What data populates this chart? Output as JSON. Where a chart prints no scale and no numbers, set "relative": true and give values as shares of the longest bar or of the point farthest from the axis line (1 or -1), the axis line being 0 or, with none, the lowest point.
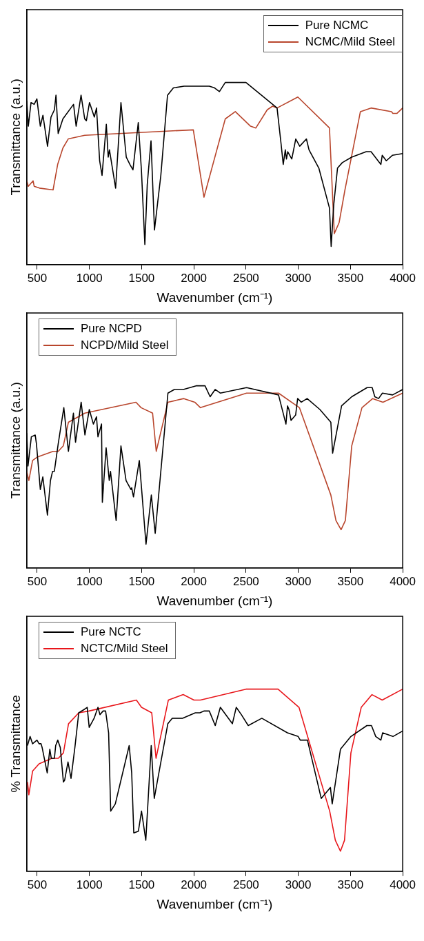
{
  "chart_data": [
    {
      "type": "line",
      "relative": true,
      "xlabel": "Wavenumber (cm⁻¹)",
      "ylabel": "Transmittance (a.u.)",
      "xlim": [
        400,
        4000
      ],
      "xticks": [
        500,
        1000,
        1500,
        2000,
        2500,
        3000,
        3500,
        4000
      ],
      "grid": false,
      "legend": "top right",
      "marker": "none",
      "line_style": "solid",
      "series": [
        {
          "name": "Pure NCMC",
          "color": "#000000",
          "x": [
            400,
            415,
            441,
            471,
            497,
            530,
            555,
            599,
            632,
            665,
            680,
            701,
            746,
            848,
            873,
            920,
            955,
            971,
            1001,
            1047,
            1068,
            1098,
            1121,
            1162,
            1180,
            1192,
            1251,
            1302,
            1353,
            1388,
            1417,
            1468,
            1498,
            1531,
            1554,
            1590,
            1623,
            1684,
            1748,
            1804,
            1906,
            2148,
            2199,
            2245,
            2301,
            2499,
            2797,
            2836,
            2856,
            2876,
            2887,
            2899,
            2938,
            2976,
            3014,
            3078,
            3103,
            3197,
            3299,
            3315,
            3340,
            3376,
            3422,
            3511,
            3651,
            3697,
            3791,
            3804,
            3843,
            3901,
            4000
          ],
          "values": [
            0.9,
            0.76,
            0.89,
            0.88,
            0.91,
            0.76,
            0.82,
            0.65,
            0.81,
            0.85,
            0.93,
            0.72,
            0.8,
            0.88,
            0.76,
            0.93,
            0.8,
            0.79,
            0.89,
            0.81,
            0.86,
            0.57,
            0.49,
            0.77,
            0.59,
            0.63,
            0.42,
            0.89,
            0.59,
            0.55,
            0.52,
            0.78,
            0.52,
            0.11,
            0.44,
            0.68,
            0.19,
            0.49,
            0.93,
            0.97,
            0.98,
            0.98,
            0.97,
            0.95,
            1.0,
            1.0,
            0.86,
            0.66,
            0.55,
            0.63,
            0.58,
            0.62,
            0.58,
            0.69,
            0.65,
            0.69,
            0.63,
            0.53,
            0.31,
            0.1,
            0.33,
            0.53,
            0.56,
            0.59,
            0.62,
            0.62,
            0.55,
            0.6,
            0.57,
            0.6,
            0.61
          ]
        },
        {
          "name": "NCMC/Mild Steel",
          "color": "#b8452c",
          "x": [
            400,
            415,
            461,
            471,
            522,
            652,
            696,
            746,
            797,
            955,
            1995,
            2097,
            2301,
            2397,
            2543,
            2594,
            2703,
            2754,
            2797,
            2996,
            3299,
            3345,
            3391,
            3447,
            3595,
            3697,
            3893,
            3906,
            3944,
            4000
          ],
          "values": [
            0.46,
            0.43,
            0.46,
            0.43,
            0.42,
            0.41,
            0.55,
            0.64,
            0.69,
            0.71,
            0.74,
            0.37,
            0.8,
            0.84,
            0.76,
            0.75,
            0.85,
            0.87,
            0.86,
            0.92,
            0.75,
            0.17,
            0.23,
            0.41,
            0.84,
            0.86,
            0.84,
            0.83,
            0.83,
            0.86
          ]
        }
      ]
    },
    {
      "type": "line",
      "relative": true,
      "xlabel": "Wavenumber (cm⁻¹)",
      "ylabel": "Transmittance (a.u.)",
      "xlim": [
        400,
        4000
      ],
      "xticks": [
        500,
        1000,
        1500,
        2000,
        2500,
        3000,
        3500,
        4000
      ],
      "grid": false,
      "legend": "top left",
      "marker": "none",
      "line_style": "solid",
      "series": [
        {
          "name": "Pure NCPD",
          "color": "#000000",
          "x": [
            400,
            412,
            444,
            481,
            493,
            530,
            554,
            598,
            627,
            647,
            664,
            701,
            755,
            799,
            847,
            867,
            921,
            957,
            999,
            1038,
            1068,
            1082,
            1116,
            1124,
            1160,
            1190,
            1202,
            1256,
            1302,
            1351,
            1398,
            1405,
            1422,
            1478,
            1542,
            1593,
            1630,
            1752,
            1813,
            1899,
            2021,
            2107,
            2156,
            2204,
            2253,
            2505,
            2811,
            2882,
            2897,
            2911,
            2931,
            2975,
            2994,
            3029,
            3085,
            3207,
            3312,
            3329,
            3415,
            3512,
            3659,
            3708,
            3733,
            3769,
            3806,
            3903,
            4000
          ],
          "values": [
            0.74,
            0.56,
            0.72,
            0.73,
            0.68,
            0.43,
            0.5,
            0.29,
            0.48,
            0.53,
            0.53,
            0.68,
            0.88,
            0.64,
            0.85,
            0.69,
            0.91,
            0.73,
            0.87,
            0.79,
            0.83,
            0.72,
            0.79,
            0.36,
            0.66,
            0.48,
            0.53,
            0.26,
            0.67,
            0.48,
            0.43,
            0.44,
            0.39,
            0.59,
            0.13,
            0.4,
            0.19,
            0.96,
            0.98,
            0.98,
            1.0,
            1.0,
            0.94,
            0.98,
            0.96,
            0.99,
            0.95,
            0.79,
            0.89,
            0.87,
            0.81,
            0.84,
            0.93,
            0.91,
            0.93,
            0.87,
            0.8,
            0.63,
            0.89,
            0.94,
            0.99,
            0.99,
            0.94,
            0.93,
            0.96,
            0.95,
            0.98
          ]
        },
        {
          "name": "NCPD/Mild Steel",
          "color": "#b8452c",
          "x": [
            400,
            420,
            456,
            505,
            652,
            701,
            750,
            799,
            957,
            1446,
            1495,
            1605,
            1640,
            1752,
            1904,
            2009,
            2063,
            2505,
            2811,
            3011,
            3312,
            3361,
            3410,
            3451,
            3512,
            3610,
            3713,
            3811,
            4000
          ],
          "values": [
            0.53,
            0.48,
            0.59,
            0.61,
            0.64,
            0.64,
            0.67,
            0.8,
            0.85,
            0.91,
            0.88,
            0.85,
            0.64,
            0.91,
            0.93,
            0.91,
            0.88,
            0.96,
            0.96,
            0.88,
            0.4,
            0.26,
            0.21,
            0.26,
            0.67,
            0.88,
            0.93,
            0.91,
            0.96
          ]
        }
      ]
    },
    {
      "type": "line",
      "relative": true,
      "xlabel": "Wavenumber (cm⁻¹)",
      "ylabel": "% Transmittance",
      "xlim": [
        400,
        4000
      ],
      "xticks": [
        500,
        1000,
        1500,
        2000,
        2500,
        3000,
        3500,
        4000
      ],
      "grid": false,
      "legend": "top left",
      "marker": "none",
      "line_style": "solid",
      "series": [
        {
          "name": "Pure NCTC",
          "color": "#000000",
          "x": [
            407,
            432,
            456,
            498,
            518,
            537,
            547,
            596,
            621,
            635,
            665,
            677,
            697,
            721,
            751,
            763,
            795,
            824,
            861,
            898,
            954,
            979,
            998,
            1045,
            1082,
            1101,
            1131,
            1155,
            1184,
            1204,
            1248,
            1302,
            1381,
            1405,
            1425,
            1469,
            1499,
            1540,
            1592,
            1621,
            1751,
            1793,
            1891,
            2014,
            2058,
            2099,
            2148,
            2205,
            2254,
            2369,
            2406,
            2455,
            2521,
            2651,
            2896,
            2999,
            3019,
            3088,
            3220,
            3308,
            3325,
            3404,
            3504,
            3657,
            3701,
            3742,
            3791,
            3808,
            3907,
            4000
          ],
          "values": [
            0.69,
            0.74,
            0.7,
            0.72,
            0.7,
            0.7,
            0.68,
            0.54,
            0.67,
            0.62,
            0.62,
            0.69,
            0.72,
            0.68,
            0.49,
            0.5,
            0.6,
            0.51,
            0.68,
            0.87,
            0.89,
            0.9,
            0.79,
            0.84,
            0.9,
            0.86,
            0.88,
            0.88,
            0.76,
            0.33,
            0.37,
            0.5,
            0.69,
            0.54,
            0.21,
            0.22,
            0.33,
            0.17,
            0.69,
            0.4,
            0.81,
            0.84,
            0.84,
            0.87,
            0.87,
            0.88,
            0.88,
            0.8,
            0.9,
            0.81,
            0.9,
            0.86,
            0.8,
            0.84,
            0.76,
            0.74,
            0.72,
            0.72,
            0.4,
            0.46,
            0.37,
            0.67,
            0.74,
            0.8,
            0.8,
            0.74,
            0.72,
            0.76,
            0.74,
            0.77
          ]
        },
        {
          "name": "NCTC/Mild Steel",
          "color": "#e8161b",
          "x": [
            407,
            420,
            456,
            518,
            640,
            702,
            751,
            800,
            898,
            996,
            1450,
            1499,
            1597,
            1638,
            1756,
            1898,
            2001,
            2063,
            2499,
            2806,
            3007,
            3301,
            3355,
            3404,
            3443,
            3504,
            3603,
            3706,
            3804,
            4000
          ],
          "values": [
            0.49,
            0.42,
            0.55,
            0.59,
            0.62,
            0.62,
            0.65,
            0.81,
            0.87,
            0.88,
            0.94,
            0.9,
            0.87,
            0.62,
            0.94,
            0.97,
            0.94,
            0.94,
            1.0,
            1.0,
            0.9,
            0.33,
            0.17,
            0.11,
            0.17,
            0.65,
            0.9,
            0.97,
            0.94,
            1.0
          ]
        }
      ]
    }
  ]
}
